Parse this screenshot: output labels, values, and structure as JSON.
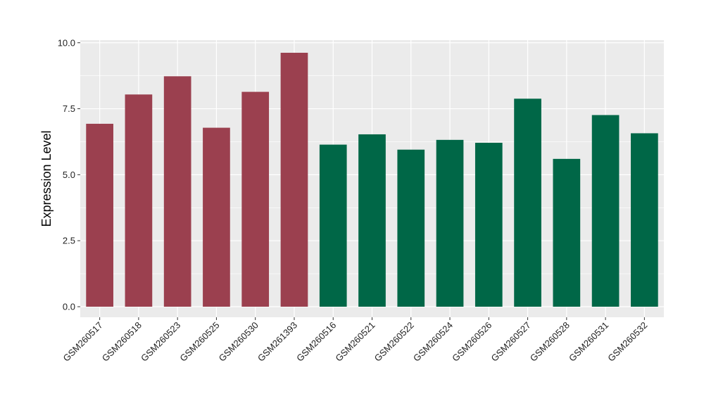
{
  "chart_data": {
    "type": "bar",
    "title": "",
    "xlabel": "",
    "ylabel": "Expression Level",
    "ylim": [
      -0.4,
      10.1
    ],
    "y_ticks": [
      "0.0",
      "2.5",
      "5.0",
      "7.5",
      "10.0"
    ],
    "y_tick_values": [
      0,
      2.5,
      5,
      7.5,
      10
    ],
    "grid": true,
    "legend": "none",
    "colors": {
      "group_1": "#9B404F",
      "group_2": "#006747",
      "panel": "#EBEBEB",
      "grid": "#FFFFFF"
    },
    "categories": [
      "GSM260517",
      "GSM260518",
      "GSM260523",
      "GSM260525",
      "GSM260530",
      "GSM261393",
      "GSM260516",
      "GSM260521",
      "GSM260522",
      "GSM260524",
      "GSM260526",
      "GSM260527",
      "GSM260528",
      "GSM260531",
      "GSM260532"
    ],
    "values": [
      6.93,
      8.04,
      8.73,
      6.78,
      8.14,
      9.62,
      6.14,
      6.53,
      5.95,
      6.32,
      6.21,
      7.88,
      5.6,
      7.26,
      6.57
    ],
    "groups": [
      1,
      1,
      1,
      1,
      1,
      1,
      2,
      2,
      2,
      2,
      2,
      2,
      2,
      2,
      2
    ]
  }
}
